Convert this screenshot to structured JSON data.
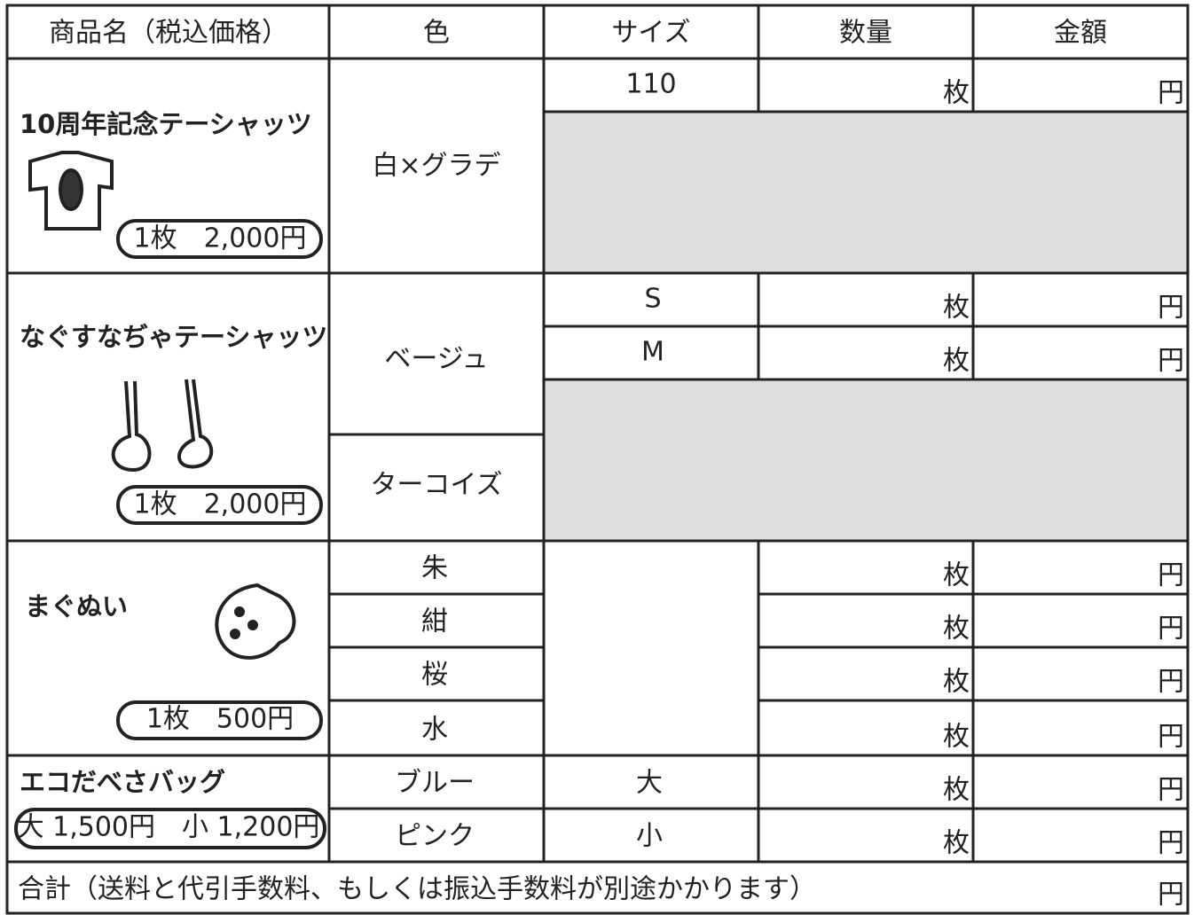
{
  "header": [
    "商品名（税込価格）",
    "色",
    "サイズ",
    "数量",
    "金額"
  ],
  "products": [
    {
      "name": "10周年記念テーシャッツ",
      "price": "1枚　2,000円",
      "colors": [
        {
          "name": "白×グラデ",
          "sizes": [
            "110"
          ]
        }
      ]
    },
    {
      "name": "なぐすなぢゃテーシャッツ",
      "price": "1枚　2,000円",
      "colors": [
        {
          "name": "ベージュ",
          "sizes": [
            "S",
            "M"
          ]
        },
        {
          "name": "ターコイズ",
          "sizes": []
        }
      ]
    },
    {
      "name": "まぐぬい",
      "price": "1枚　500円",
      "colors": [
        {
          "name": "朱",
          "sizes": []
        },
        {
          "name": "紺",
          "sizes": []
        },
        {
          "name": "桜",
          "sizes": []
        },
        {
          "name": "水",
          "sizes": []
        }
      ]
    },
    {
      "name": "エコだべさバッグ",
      "price": "大 1,500円　小 1,200円",
      "colors": [
        {
          "name": "ブルー",
          "sizes": [
            "大"
          ]
        },
        {
          "name": "ピンク",
          "sizes": [
            "小"
          ]
        }
      ]
    }
  ],
  "total": {
    "label": "合計（送料と代引手数料、もしくは振込手数料が別途かかります）"
  },
  "units": {
    "quantity": "枚",
    "amount": "円"
  }
}
